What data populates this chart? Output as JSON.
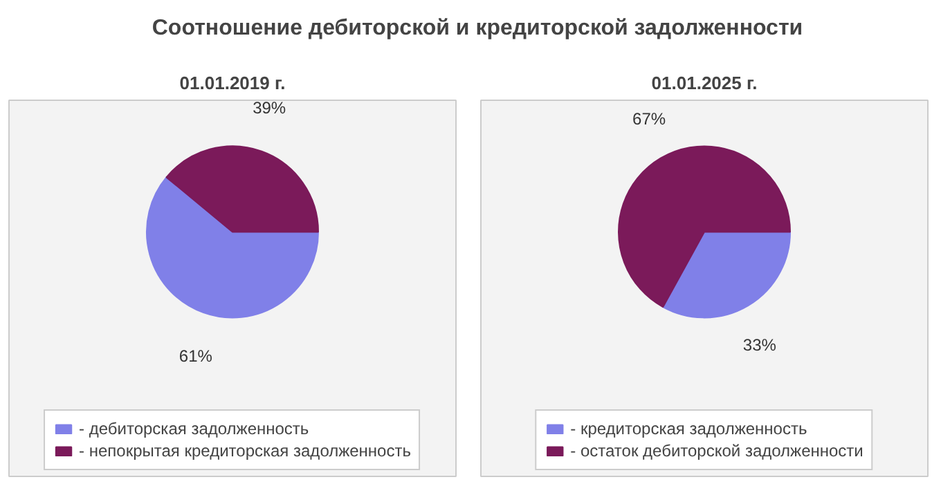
{
  "chart_data": [
    {
      "type": "pie",
      "title": "Соотношение дебиторской и кредиторской задолженности",
      "subtitle": "01.01.2019 г.",
      "categories": [
        "- дебиторская задолженность",
        "- непокрытая кредиторская задолженность"
      ],
      "values": [
        61,
        39
      ],
      "colors": [
        "#8080e8",
        "#7b1a5a"
      ],
      "value_labels": [
        "61%",
        "39%"
      ],
      "legend": "bottom"
    },
    {
      "type": "pie",
      "subtitle": "01.01.2025 г.",
      "categories": [
        "- кредиторская задолженность",
        "- остаток дебиторской задолженности"
      ],
      "values": [
        33,
        67
      ],
      "colors": [
        "#8080e8",
        "#7b1a5a"
      ],
      "value_labels": [
        "33%",
        "67%"
      ],
      "legend": "bottom"
    }
  ]
}
